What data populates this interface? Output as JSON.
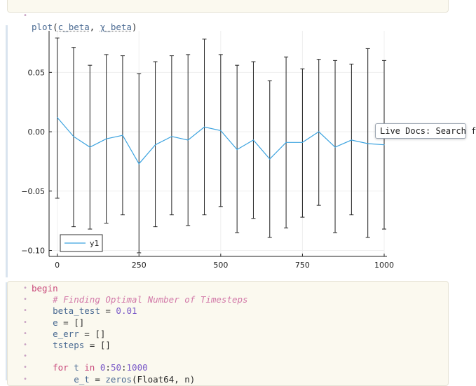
{
  "top_cell": {
    "call_fn": "plot",
    "arg1": "c_beta",
    "sep": ", ",
    "arg2": "χ_beta"
  },
  "tooltip": {
    "text": "Live Docs: Search f"
  },
  "chart_data": {
    "type": "scatter",
    "title": "",
    "xlabel": "",
    "ylabel": "",
    "xlim": [
      -25,
      1000
    ],
    "ylim": [
      -0.105,
      0.085
    ],
    "xticks": [
      0,
      250,
      500,
      750,
      1000
    ],
    "yticks": [
      -0.1,
      -0.05,
      0.0,
      0.05
    ],
    "xtick_labels": [
      "0",
      "250",
      "500",
      "750",
      "1000"
    ],
    "ytick_labels": [
      "−0.10",
      "−0.05",
      "0.00",
      "0.05"
    ],
    "grid": true,
    "legend": "bottom-left",
    "series": [
      {
        "name": "y1",
        "color": "#3aa2df",
        "x": [
          0,
          50,
          100,
          150,
          200,
          250,
          300,
          350,
          400,
          450,
          500,
          550,
          600,
          650,
          700,
          750,
          800,
          850,
          900,
          950,
          1000
        ],
        "y": [
          0.012,
          -0.004,
          -0.013,
          -0.006,
          -0.003,
          -0.027,
          -0.011,
          -0.004,
          -0.007,
          0.004,
          0.001,
          -0.015,
          -0.007,
          -0.023,
          -0.009,
          -0.009,
          0.0,
          -0.013,
          -0.007,
          -0.01,
          -0.011
        ],
        "err_hi": [
          0.079,
          0.071,
          0.056,
          0.065,
          0.064,
          0.049,
          0.059,
          0.064,
          0.065,
          0.078,
          0.065,
          0.056,
          0.059,
          0.043,
          0.063,
          0.053,
          0.061,
          0.06,
          0.057,
          0.07,
          0.06
        ],
        "err_lo": [
          -0.056,
          -0.08,
          -0.082,
          -0.077,
          -0.07,
          -0.102,
          -0.08,
          -0.07,
          -0.079,
          -0.07,
          -0.063,
          -0.085,
          -0.073,
          -0.089,
          -0.081,
          -0.072,
          -0.062,
          -0.085,
          -0.07,
          -0.089,
          -0.082
        ]
      }
    ]
  },
  "bottom_cell": {
    "lines": [
      {
        "parts": [
          {
            "c": "kw",
            "t": "begin"
          }
        ]
      },
      {
        "parts": [
          {
            "c": "",
            "t": "    "
          },
          {
            "c": "cm",
            "t": "# Finding Optimal Number of Timesteps"
          }
        ]
      },
      {
        "parts": [
          {
            "c": "",
            "t": "    "
          },
          {
            "c": "var",
            "t": "beta_test"
          },
          {
            "c": "",
            "t": " = "
          },
          {
            "c": "num",
            "t": "0.01"
          }
        ]
      },
      {
        "parts": [
          {
            "c": "",
            "t": "    "
          },
          {
            "c": "var",
            "t": "e"
          },
          {
            "c": "",
            "t": " = []"
          }
        ]
      },
      {
        "parts": [
          {
            "c": "",
            "t": "    "
          },
          {
            "c": "var",
            "t": "e_err"
          },
          {
            "c": "",
            "t": " = []"
          }
        ]
      },
      {
        "parts": [
          {
            "c": "",
            "t": "    "
          },
          {
            "c": "var",
            "t": "tsteps"
          },
          {
            "c": "",
            "t": " = []"
          }
        ]
      },
      {
        "parts": []
      },
      {
        "parts": [
          {
            "c": "",
            "t": "    "
          },
          {
            "c": "kw",
            "t": "for"
          },
          {
            "c": "",
            "t": " "
          },
          {
            "c": "var",
            "t": "t"
          },
          {
            "c": "",
            "t": " "
          },
          {
            "c": "kw",
            "t": "in"
          },
          {
            "c": "",
            "t": " "
          },
          {
            "c": "num",
            "t": "0"
          },
          {
            "c": "",
            "t": ":"
          },
          {
            "c": "num",
            "t": "50"
          },
          {
            "c": "",
            "t": ":"
          },
          {
            "c": "num",
            "t": "1000"
          }
        ]
      },
      {
        "parts": [
          {
            "c": "",
            "t": "        "
          },
          {
            "c": "var",
            "t": "e_t"
          },
          {
            "c": "",
            "t": " = "
          },
          {
            "c": "fn",
            "t": "zeros"
          },
          {
            "c": "",
            "t": "(Float64, n)"
          }
        ]
      }
    ]
  }
}
